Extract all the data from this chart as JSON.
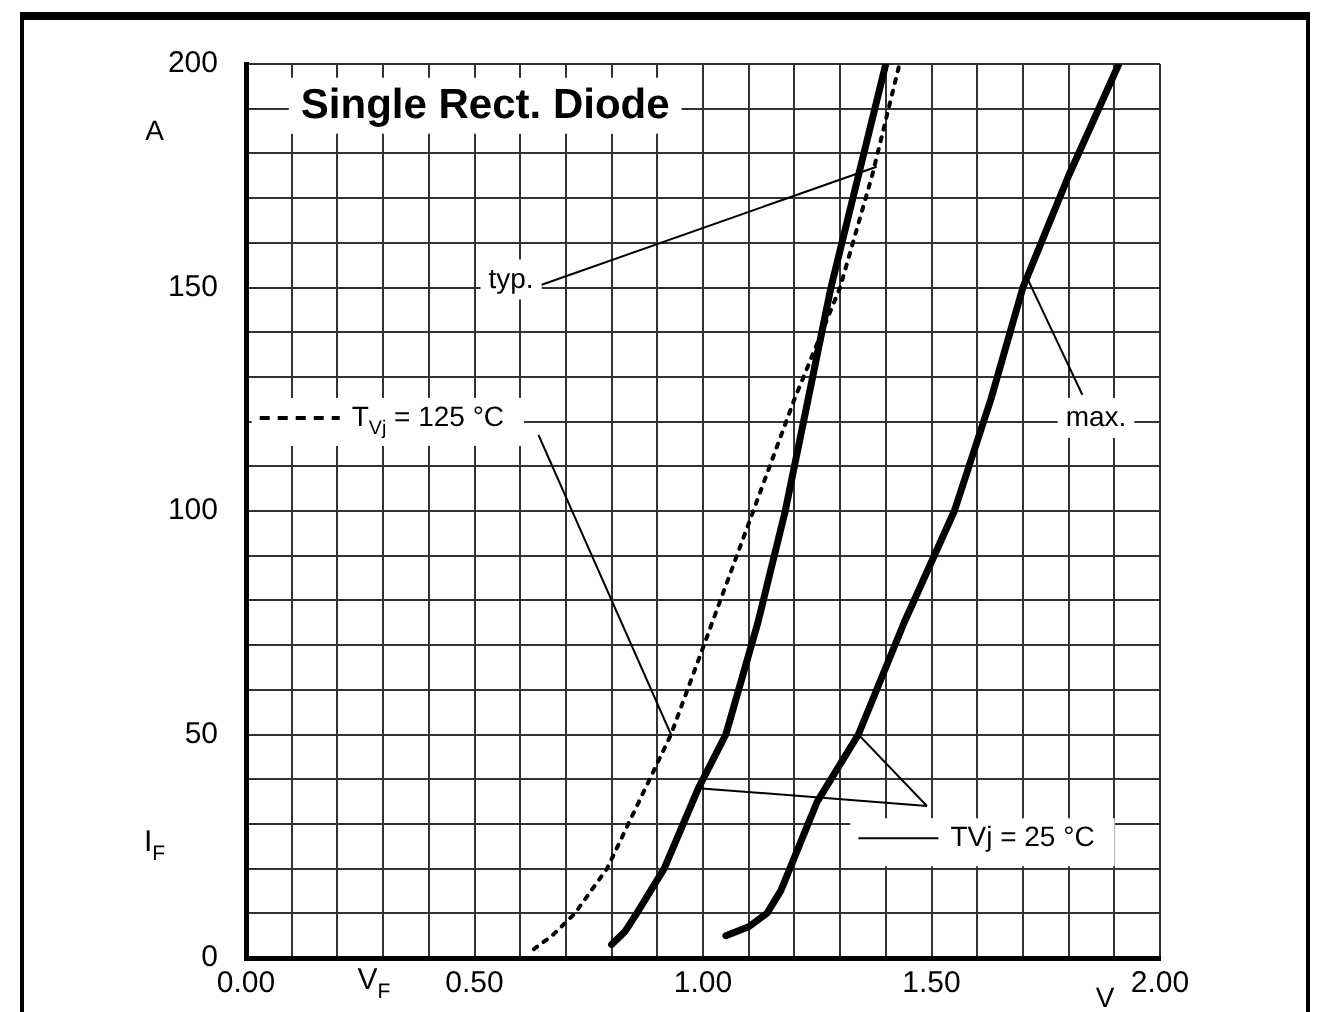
{
  "chart_data": {
    "type": "line",
    "title": "Single Rect. Diode",
    "xlabel": "V$_{F}$",
    "ylabel": "I$_{F}$",
    "annotations": [
      "A",
      "V",
      {
        "text": "typ.",
        "x": 1.38,
        "y": 177
      },
      {
        "text": "max.",
        "x": 1.71,
        "y": 152
      }
    ],
    "legend": "left",
    "xlim": [
      0,
      2
    ],
    "ylim": [
      0,
      200
    ],
    "xticks": [
      {
        "value": 0,
        "label": "0.00"
      },
      {
        "value": 0.1,
        "label": null
      },
      {
        "value": 0.2,
        "label": null
      },
      {
        "value": 0.3,
        "label": null
      },
      {
        "value": 0.4,
        "label": null
      },
      {
        "value": 0.5,
        "label": "0.50"
      },
      {
        "value": 0.6,
        "label": null
      },
      {
        "value": 0.7,
        "label": null
      },
      {
        "value": 0.8,
        "label": null
      },
      {
        "value": 0.9,
        "label": null
      },
      {
        "value": 1,
        "label": "1.00"
      },
      {
        "value": 1.1,
        "label": null
      },
      {
        "value": 1.2,
        "label": null
      },
      {
        "value": 1.3,
        "label": null
      },
      {
        "value": 1.4,
        "label": null
      },
      {
        "value": 1.5,
        "label": "1.50"
      },
      {
        "value": 1.6,
        "label": null
      },
      {
        "value": 1.7,
        "label": null
      },
      {
        "value": 1.8,
        "label": null
      },
      {
        "value": 1.9,
        "label": null
      },
      {
        "value": 2,
        "label": "2.00"
      }
    ],
    "yticks": [
      0,
      {
        "value": 10,
        "label": null
      },
      {
        "value": 20,
        "label": null
      },
      {
        "value": 30,
        "label": null
      },
      {
        "value": 40,
        "label": null
      },
      50,
      {
        "value": 60,
        "label": null
      },
      {
        "value": 70,
        "label": null
      },
      {
        "value": 80,
        "label": null
      },
      {
        "value": 90,
        "label": null
      },
      100,
      {
        "value": 110,
        "label": null
      },
      {
        "value": 120,
        "label": null
      },
      {
        "value": 130,
        "label": null
      },
      {
        "value": 140,
        "label": null
      },
      150,
      {
        "value": 160,
        "label": null
      },
      {
        "value": 170,
        "label": null
      },
      {
        "value": 180,
        "label": null
      },
      {
        "value": 190,
        "label": null
      },
      200
    ],
    "grid": true,
    "marker": "none",
    "series": [
      {
        "name": "T$_{Vj}$ = 125 °C",
        "color": "#000000",
        "line_style": "dotted",
        "x": [
          0.63,
          0.67,
          0.72,
          0.79,
          0.86,
          0.93,
          1.02,
          1.11,
          1.2,
          1.3,
          1.37,
          1.43
        ],
        "values": [
          2,
          5,
          10,
          20,
          35,
          50,
          75,
          100,
          125,
          150,
          175,
          200
        ]
      },
      {
        "name": "TVj = 25 °C",
        "color": "#000000",
        "line_style": "solid",
        "x": [
          0.8,
          0.83,
          0.855,
          0.915,
          0.99,
          1.05,
          1.12,
          1.18,
          1.23,
          1.28,
          1.34,
          1.4
        ],
        "values": [
          3,
          6,
          10,
          20,
          38,
          50,
          75,
          100,
          125,
          150,
          175,
          200
        ]
      },
      {
        "color": "#000000",
        "line_style": "solid",
        "x": [
          1.05,
          1.1,
          1.14,
          1.17,
          1.19,
          1.25,
          1.34,
          1.44,
          1.55,
          1.63,
          1.7,
          1.8,
          1.91
        ],
        "values": [
          5,
          7,
          10,
          15,
          20,
          35,
          50,
          75,
          100,
          125,
          150,
          175,
          200
        ]
      }
    ]
  }
}
